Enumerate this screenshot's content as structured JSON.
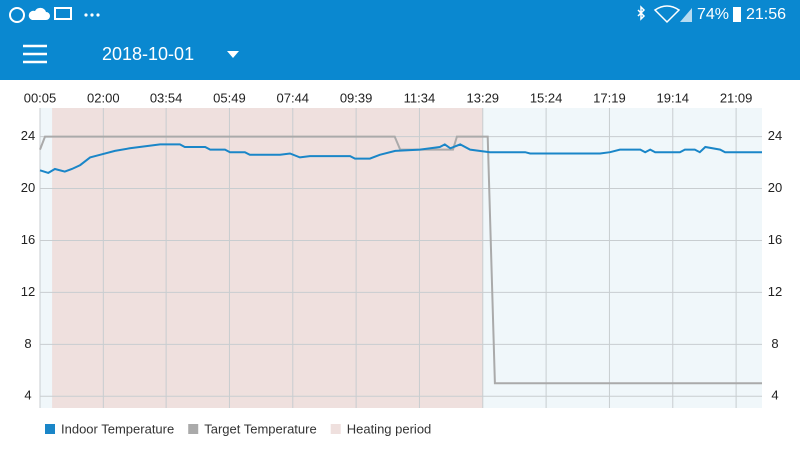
{
  "status_bar": {
    "battery": "74%",
    "time": "21:56"
  },
  "header": {
    "date": "2018-10-01"
  },
  "chart_data": {
    "type": "line",
    "xlim": [
      "00:05",
      "21:56"
    ],
    "xticks": [
      "00:05",
      "02:00",
      "03:54",
      "05:49",
      "07:44",
      "09:39",
      "11:34",
      "13:29",
      "15:24",
      "17:19",
      "19:14",
      "21:09"
    ],
    "ylim": [
      3.1,
      26.2
    ],
    "yticks": [
      4,
      8,
      12,
      16,
      20,
      24
    ],
    "grid": true,
    "heating_period": {
      "name": "Heating period",
      "color": "#efe0de",
      "start": "00:27",
      "end": "13:29"
    },
    "series": [
      {
        "name": "Indoor Temperature",
        "color": "#1a86c8",
        "x": [
          "00:05",
          "00:20",
          "00:32",
          "00:50",
          "01:03",
          "01:18",
          "01:36",
          "01:54",
          "02:21",
          "02:48",
          "03:43",
          "04:19",
          "04:28",
          "05:05",
          "05:14",
          "05:41",
          "05:50",
          "06:17",
          "06:26",
          "07:21",
          "07:39",
          "07:57",
          "08:15",
          "09:28",
          "09:37",
          "10:04",
          "10:22",
          "10:50",
          "11:35",
          "12:11",
          "12:20",
          "12:30",
          "12:48",
          "13:06",
          "13:42",
          "14:46",
          "14:55",
          "17:02",
          "17:20",
          "17:38",
          "18:15",
          "18:24",
          "18:33",
          "18:42",
          "19:27",
          "19:36",
          "19:54",
          "20:03",
          "20:13",
          "20:40",
          "20:49",
          "21:56"
        ],
        "values": [
          21.4,
          21.2,
          21.5,
          21.3,
          21.5,
          21.8,
          22.4,
          22.6,
          22.9,
          23.1,
          23.4,
          23.4,
          23.2,
          23.2,
          23.0,
          23.0,
          22.8,
          22.8,
          22.6,
          22.6,
          22.7,
          22.4,
          22.5,
          22.5,
          22.3,
          22.3,
          22.6,
          22.9,
          23.0,
          23.2,
          23.4,
          23.1,
          23.4,
          23.0,
          22.8,
          22.8,
          22.7,
          22.7,
          22.8,
          23.0,
          23.0,
          22.8,
          23.0,
          22.8,
          22.8,
          23.0,
          23.0,
          22.8,
          23.2,
          23.0,
          22.8,
          22.8
        ]
      },
      {
        "name": "Target Temperature",
        "color": "#aaaaaa",
        "x": [
          "00:05",
          "00:14",
          "10:49",
          "10:59",
          "12:35",
          "12:42",
          "13:38",
          "13:51",
          "21:56"
        ],
        "values": [
          23,
          24,
          24,
          23,
          23,
          24,
          24,
          5,
          5
        ]
      }
    ]
  }
}
